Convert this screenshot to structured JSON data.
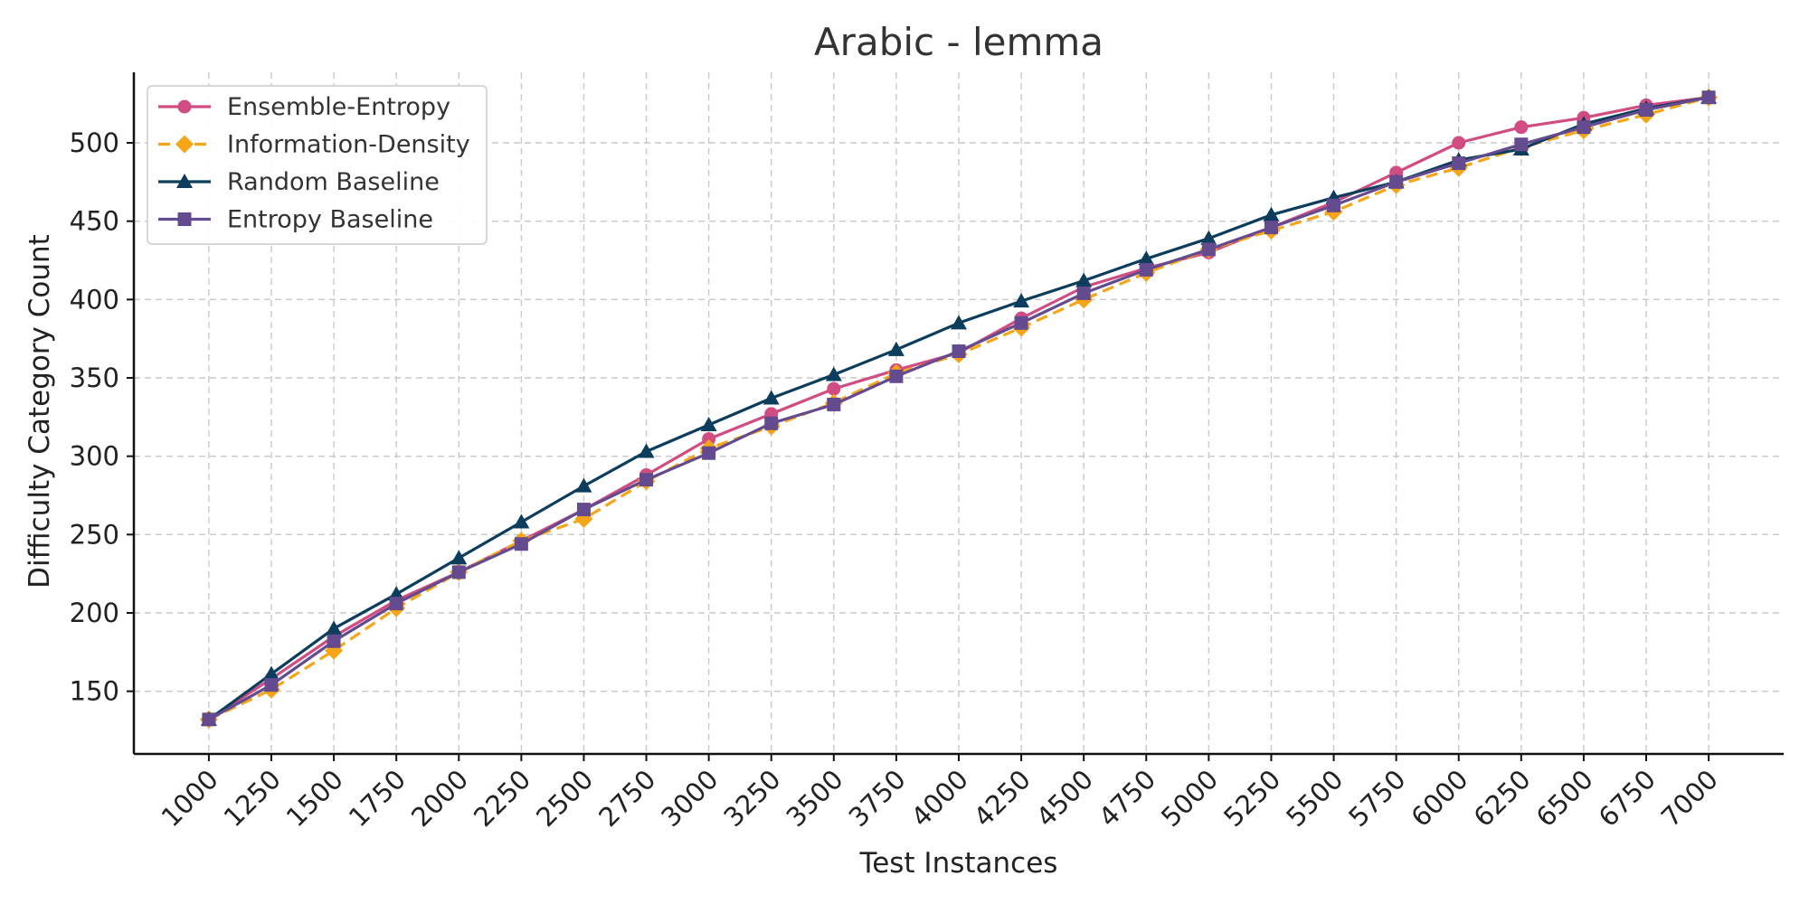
{
  "chart_data": {
    "type": "line",
    "title": "Arabic - lemma",
    "xlabel": "Test Instances",
    "ylabel": "Difficulty Category Count",
    "x": [
      1000,
      1250,
      1500,
      1750,
      2000,
      2250,
      2500,
      2750,
      3000,
      3250,
      3500,
      3750,
      4000,
      4250,
      4500,
      4750,
      5000,
      5250,
      5500,
      5750,
      6000,
      6250,
      6500,
      6750,
      7000
    ],
    "x_tick_labels": [
      "1000",
      "1250",
      "1500",
      "1750",
      "2000",
      "2250",
      "2500",
      "2750",
      "3000",
      "3250",
      "3500",
      "3750",
      "4000",
      "4250",
      "4500",
      "4750",
      "5000",
      "5250",
      "5500",
      "5750",
      "6000",
      "6250",
      "6500",
      "6750",
      "7000"
    ],
    "yticks": [
      150,
      200,
      250,
      300,
      350,
      400,
      450,
      500
    ],
    "y_tick_labels": [
      "150",
      "200",
      "250",
      "300",
      "350",
      "400",
      "450",
      "500"
    ],
    "xlim": [
      700,
      7300
    ],
    "ylim": [
      110,
      545
    ],
    "grid": true,
    "legend_position": "top-left",
    "series": [
      {
        "name": "Ensemble-Entropy",
        "color": "#d04c82",
        "marker": "circle",
        "linestyle": "solid",
        "values": [
          132,
          158,
          185,
          208,
          226,
          246,
          266,
          288,
          311,
          327,
          343,
          355,
          366,
          388,
          408,
          420,
          430,
          446,
          462,
          481,
          500,
          510,
          516,
          524,
          529
        ]
      },
      {
        "name": "Information-Density",
        "color": "#f5a516",
        "marker": "diamond",
        "linestyle": "dashed",
        "values": [
          132,
          151,
          176,
          203,
          226,
          246,
          260,
          284,
          305,
          319,
          334,
          353,
          365,
          382,
          400,
          417,
          432,
          444,
          456,
          473,
          484,
          497,
          508,
          518,
          529
        ]
      },
      {
        "name": "Random Baseline",
        "color": "#0c3d5c",
        "marker": "triangle",
        "linestyle": "solid",
        "values": [
          132,
          161,
          190,
          212,
          235,
          258,
          281,
          303,
          320,
          337,
          352,
          368,
          385,
          399,
          412,
          426,
          439,
          454,
          465,
          475,
          489,
          496,
          512,
          522,
          529
        ]
      },
      {
        "name": "Entropy Baseline",
        "color": "#644a8e",
        "marker": "square",
        "linestyle": "solid",
        "values": [
          132,
          154,
          182,
          206,
          226,
          244,
          266,
          285,
          302,
          321,
          333,
          351,
          367,
          385,
          404,
          419,
          432,
          446,
          460,
          475,
          487,
          499,
          510,
          521,
          529
        ]
      }
    ]
  }
}
